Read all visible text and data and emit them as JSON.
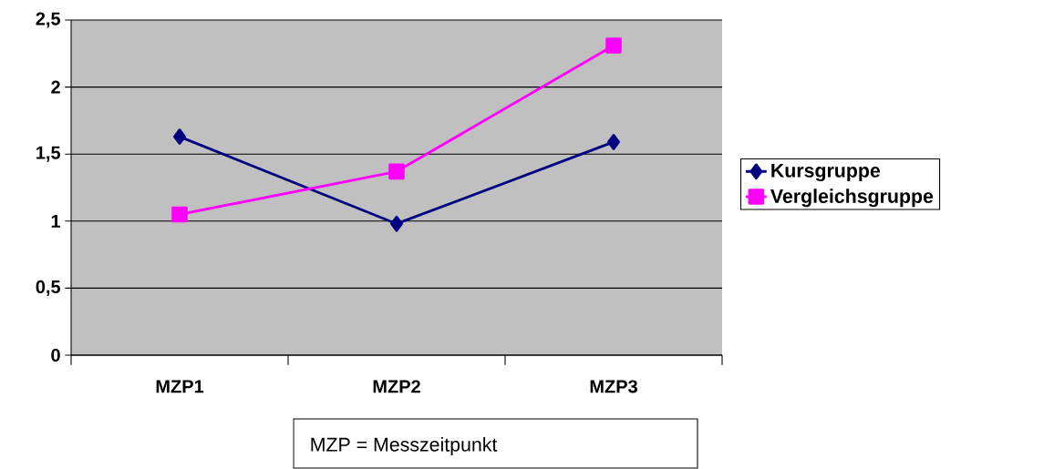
{
  "chart_data": {
    "type": "line",
    "categories": [
      "MZP1",
      "MZP2",
      "MZP3"
    ],
    "series": [
      {
        "name": "Kursgruppe",
        "color": "#000080",
        "marker": "diamond",
        "values": [
          1.63,
          0.98,
          1.59
        ]
      },
      {
        "name": "Vergleichsgruppe",
        "color": "#ff00ff",
        "marker": "square",
        "values": [
          1.05,
          1.37,
          2.31
        ]
      }
    ],
    "ylim": [
      0,
      2.5
    ],
    "yticks": [
      0,
      {
        "value": 0.5,
        "label": "0,5"
      },
      1,
      {
        "value": 1.5,
        "label": "1,5"
      },
      2,
      {
        "value": 2.5,
        "label": "2,5"
      }
    ],
    "grid": "y",
    "legend": "right",
    "annotations": [
      "MZP = Messzeitpunkt"
    ]
  }
}
